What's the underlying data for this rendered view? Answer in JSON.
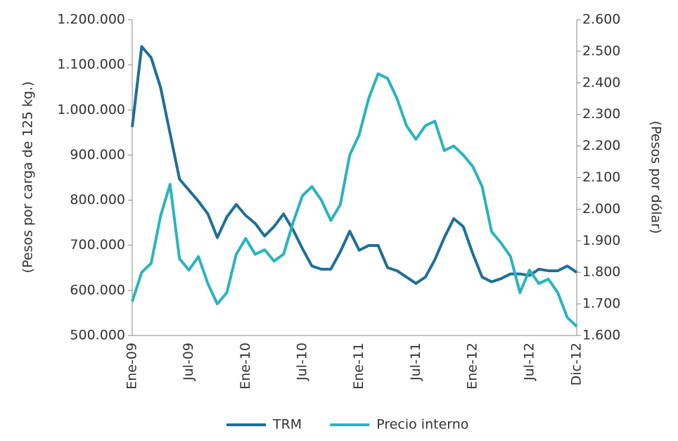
{
  "chart_data": {
    "type": "line",
    "categories": [
      "Ene-09",
      null,
      null,
      null,
      null,
      null,
      "Jul-09",
      null,
      null,
      null,
      null,
      null,
      "Ene-10",
      null,
      null,
      null,
      null,
      null,
      "Jul-10",
      null,
      null,
      null,
      null,
      null,
      "Ene-11",
      null,
      null,
      null,
      null,
      null,
      "Jul-11",
      null,
      null,
      null,
      null,
      null,
      "Ene-12",
      null,
      null,
      null,
      null,
      null,
      "Jul-12",
      null,
      null,
      null,
      null,
      "Dic-12"
    ],
    "ylabel": "(Pesos por carga de 125 kg.)",
    "y2label": "(Pesos por dólar)",
    "ylim": [
      500000,
      1200000
    ],
    "yticks": [
      {
        "value": 500000,
        "label": "500.000"
      },
      {
        "value": 600000,
        "label": "600.000"
      },
      {
        "value": 700000,
        "label": "700.000"
      },
      {
        "value": 800000,
        "label": "800.000"
      },
      {
        "value": 900000,
        "label": "900.000"
      },
      {
        "value": 1000000,
        "label": "1.000.000"
      },
      {
        "value": 1100000,
        "label": "1.100.000"
      },
      {
        "value": 1200000,
        "label": "1.200.000"
      }
    ],
    "y2lim": [
      1600,
      2600
    ],
    "y2ticks": [
      {
        "value": 1600,
        "label": "1.600"
      },
      {
        "value": 1700,
        "label": "1.700"
      },
      {
        "value": 1800,
        "label": "1.800"
      },
      {
        "value": 1900,
        "label": "1.900"
      },
      {
        "value": 2000,
        "label": "2.000"
      },
      {
        "value": 2100,
        "label": "2.100"
      },
      {
        "value": 2200,
        "label": "2.200"
      },
      {
        "value": 2300,
        "label": "2.300"
      },
      {
        "value": 2400,
        "label": "2.400"
      },
      {
        "value": 2500,
        "label": "2.500"
      },
      {
        "value": 2600,
        "label": "2.600"
      }
    ],
    "legend": "bottom",
    "series": [
      {
        "name": "TRM",
        "color": "#1f6f97",
        "axis": "y2",
        "values": [
          2260,
          2515,
          2480,
          2385,
          2240,
          2095,
          2060,
          2025,
          1985,
          1910,
          1975,
          2015,
          1980,
          1955,
          1915,
          1945,
          1985,
          1935,
          1875,
          1820,
          1810,
          1810,
          1865,
          1930,
          1870,
          1885,
          1885,
          1815,
          1805,
          1785,
          1765,
          1785,
          1840,
          1910,
          1970,
          1945,
          1860,
          1785,
          1770,
          1780,
          1795,
          1795,
          1790,
          1810,
          1805,
          1805,
          1820,
          1800
        ]
      },
      {
        "name": "Precio interno",
        "color": "#2bb3bf",
        "values": [
          575000,
          640000,
          660000,
          765000,
          835000,
          670000,
          645000,
          675000,
          615000,
          570000,
          595000,
          680000,
          715000,
          680000,
          690000,
          665000,
          680000,
          750000,
          810000,
          830000,
          800000,
          755000,
          790000,
          900000,
          945000,
          1025000,
          1080000,
          1070000,
          1025000,
          965000,
          935000,
          965000,
          975000,
          910000,
          920000,
          900000,
          875000,
          830000,
          730000,
          705000,
          675000,
          595000,
          645000,
          615000,
          625000,
          595000,
          540000,
          520000
        ]
      }
    ]
  }
}
